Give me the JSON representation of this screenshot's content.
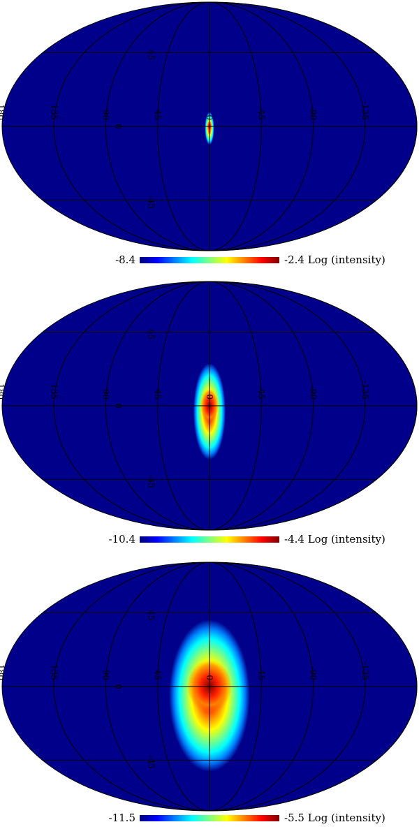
{
  "chart_data": [
    {
      "type": "heatmap",
      "projection": "mollweide",
      "title": "",
      "colormap": "jet",
      "background_color": "#00008b",
      "graticule": {
        "meridians": [
          "-180",
          "-135",
          "-90",
          "-45",
          "0",
          "45",
          "90",
          "135"
        ],
        "parallels": [
          "-45",
          "0",
          "45"
        ]
      },
      "lon_labels": [
        "180",
        "135",
        "90",
        "45",
        "0",
        "-45",
        "-90",
        "-135"
      ],
      "lat_labels": [
        "45",
        "0",
        "-45"
      ],
      "color_range": {
        "min": "-8.4",
        "max": "-2.4"
      },
      "colorbar_label": "Log (intensity)",
      "source": {
        "lon": 0,
        "lat": 0,
        "extent_lon_deg": 4,
        "extent_lat_deg": 12
      }
    },
    {
      "type": "heatmap",
      "projection": "mollweide",
      "title": "",
      "colormap": "jet",
      "background_color": "#00008b",
      "graticule": {
        "meridians": [
          "-180",
          "-135",
          "-90",
          "-45",
          "0",
          "45",
          "90",
          "135"
        ],
        "parallels": [
          "-45",
          "0",
          "45"
        ]
      },
      "lon_labels": [
        "180",
        "135",
        "90",
        "45",
        "0",
        "-45",
        "-90",
        "-135"
      ],
      "lat_labels": [
        "45",
        "0",
        "-45"
      ],
      "color_range": {
        "min": "-10.4",
        "max": "-4.4"
      },
      "colorbar_label": "Log (intensity)",
      "source": {
        "lon": 0,
        "lat": 0,
        "extent_lon_deg": 14,
        "extent_lat_deg": 35
      }
    },
    {
      "type": "heatmap",
      "projection": "mollweide",
      "title": "",
      "colormap": "jet",
      "background_color": "#00008b",
      "graticule": {
        "meridians": [
          "-180",
          "-135",
          "-90",
          "-45",
          "0",
          "45",
          "90",
          "135"
        ],
        "parallels": [
          "-45",
          "0",
          "45"
        ]
      },
      "lon_labels": [
        "180",
        "135",
        "90",
        "45",
        "0",
        "-45",
        "-90",
        "-135"
      ],
      "lat_labels": [
        "45",
        "0",
        "-45"
      ],
      "color_range": {
        "min": "-11.5",
        "max": "-5.5"
      },
      "colorbar_label": "Log (intensity)",
      "source": {
        "lon": 0,
        "lat": 0,
        "extent_lon_deg": 35,
        "extent_lat_deg": 55
      }
    }
  ]
}
